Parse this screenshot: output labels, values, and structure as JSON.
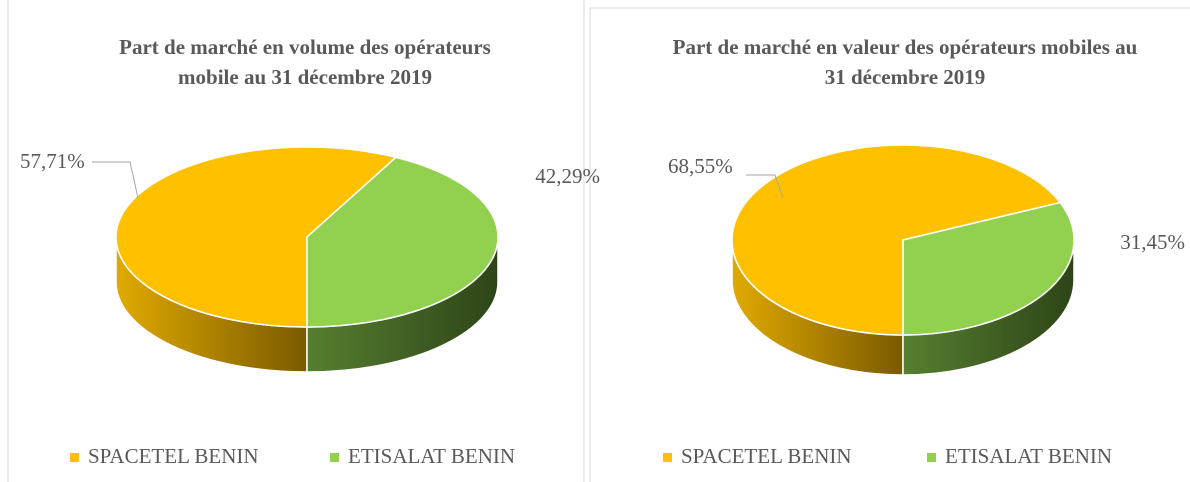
{
  "chart_data": [
    {
      "type": "pie3d",
      "title": "Part de marché en volume des opérateurs mobile au 31 décembre 2019",
      "categories": [
        "SPACETEL BENIN",
        "ETISALAT BENIN"
      ],
      "values": [
        57.71,
        42.29
      ],
      "value_labels": [
        "57,71%",
        "42,29%"
      ],
      "colors": [
        "#FFC000",
        "#92D050"
      ],
      "legend": "bottom"
    },
    {
      "type": "pie3d",
      "title": "Part de marché en valeur des opérateurs mobiles au 31 décembre 2019",
      "categories": [
        "SPACETEL BENIN",
        "ETISALAT BENIN"
      ],
      "values": [
        68.55,
        31.45
      ],
      "value_labels": [
        "68,55%",
        "31,45%"
      ],
      "colors": [
        "#FFC000",
        "#92D050"
      ],
      "legend": "bottom"
    }
  ]
}
